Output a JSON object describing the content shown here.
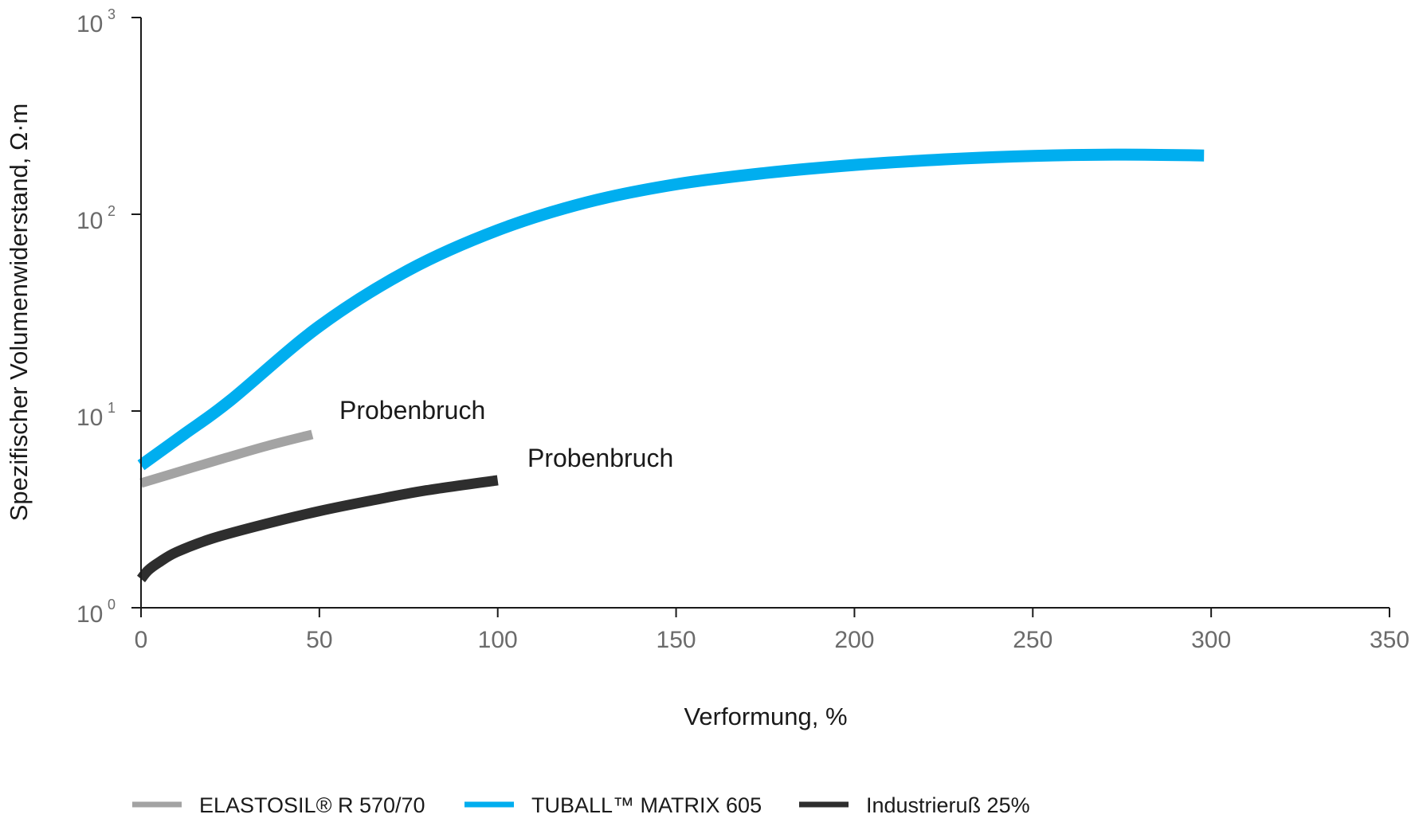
{
  "chart_data": {
    "type": "line",
    "xlabel": "Verformung, %",
    "ylabel": "Spezifischer Volumenwiderstand, Ω·m",
    "xlim": [
      0,
      350
    ],
    "ylim": [
      1,
      1000
    ],
    "yscale": "log",
    "x_ticks": [
      "0",
      "50",
      "100",
      "150",
      "200",
      "250",
      "300",
      "350"
    ],
    "y_ticks": [
      {
        "base": "10",
        "exp": "0"
      },
      {
        "base": "10",
        "exp": "1"
      },
      {
        "base": "10",
        "exp": "2"
      },
      {
        "base": "10",
        "exp": "3"
      }
    ],
    "grid": false,
    "legend_position": "bottom",
    "series": [
      {
        "name": "ELASTOSIL® R 570/70",
        "color": "#a3a3a3",
        "x": [
          0,
          12,
          24,
          36,
          48
        ],
        "y": [
          4.3,
          5.0,
          5.8,
          6.7,
          7.6
        ]
      },
      {
        "name": "TUBALL™ MATRIX 605",
        "color": "#00aeef",
        "x": [
          0,
          12,
          25,
          50,
          75,
          100,
          125,
          150,
          175,
          200,
          225,
          250,
          275,
          298
        ],
        "y": [
          5.3,
          7.6,
          11.3,
          27,
          52,
          83,
          115,
          142,
          162,
          178,
          190,
          198,
          201,
          199
        ]
      },
      {
        "name": "Industrieruß 25%",
        "color": "#2e2e2e",
        "x": [
          0,
          2,
          5,
          10,
          20,
          35,
          50,
          65,
          80,
          100
        ],
        "y": [
          1.4,
          1.55,
          1.7,
          1.92,
          2.25,
          2.67,
          3.1,
          3.52,
          3.95,
          4.45
        ]
      }
    ],
    "annotations": [
      {
        "text": "Probenbruch",
        "series": "ELASTOSIL® R 570/70"
      },
      {
        "text": "Probenbruch",
        "series": "Industrieruß 25%"
      }
    ]
  }
}
